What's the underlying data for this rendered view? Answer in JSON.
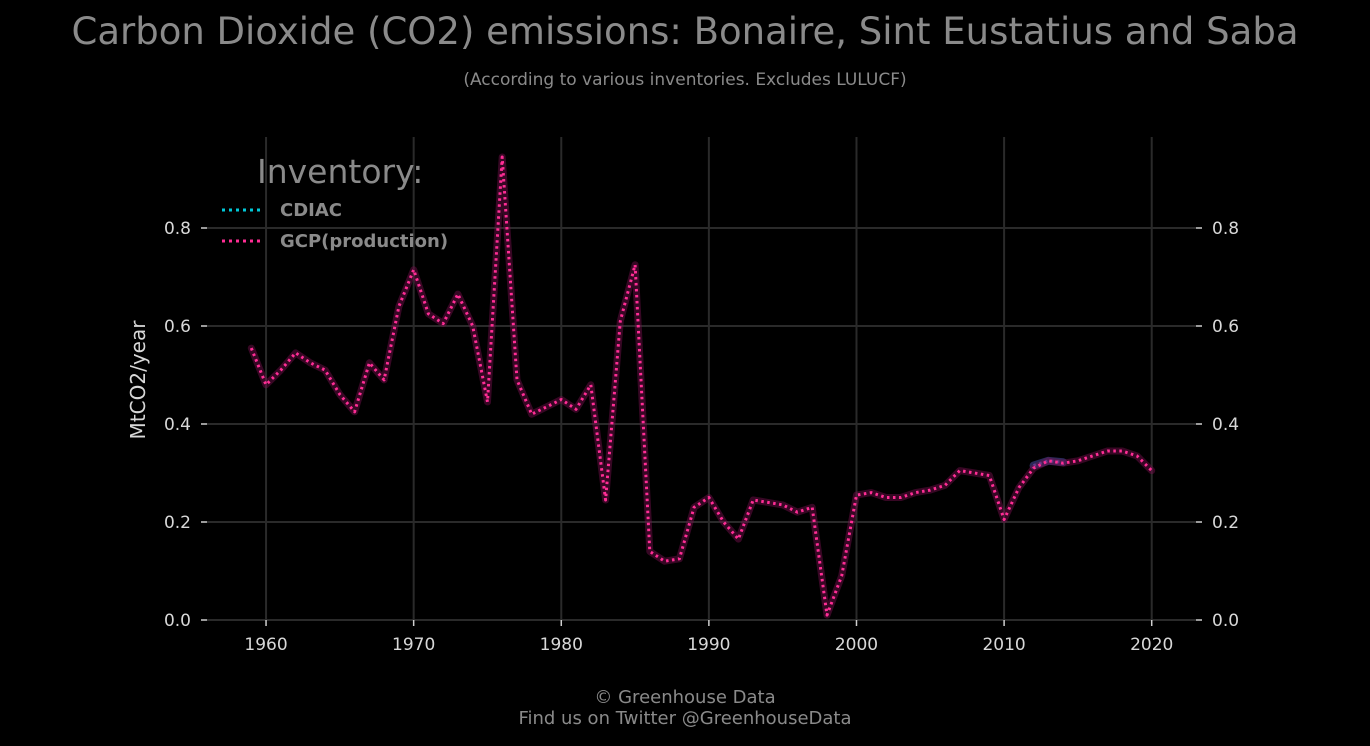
{
  "header": {
    "title": "Carbon Dioxide (CO2) emissions: Bonaire, Sint Eustatius and Saba",
    "subtitle": "(According to various inventories. Excludes LULUCF)"
  },
  "footer": {
    "line1": "© Greenhouse Data",
    "line2": "Find us on Twitter @GreenhouseData"
  },
  "colors": {
    "background": "#000000",
    "grid": "#2a2a2a",
    "cdiac": "#00c8d8",
    "gcp": "#ff2d95",
    "text": "#8a8a8a"
  },
  "chart_data": {
    "type": "line",
    "title": "Carbon Dioxide (CO2) emissions: Bonaire, Sint Eustatius and Saba",
    "subtitle": "(According to various inventories. Excludes LULUCF)",
    "xlabel": "",
    "ylabel": "MtCO2/year",
    "xlim": [
      1956,
      2023
    ],
    "ylim": [
      0,
      0.95
    ],
    "x_ticks": [
      1960,
      1970,
      1980,
      1990,
      2000,
      2010,
      2020
    ],
    "y_ticks": [
      "0.0",
      "0.2",
      "0.4",
      "0.6",
      "0.8"
    ],
    "y_tick_values": [
      0,
      0.2,
      0.4,
      0.6,
      0.8
    ],
    "grid": true,
    "legend": {
      "title": "Inventory:",
      "position": "top-left"
    },
    "series": [
      {
        "name": "CDIAC",
        "style": "dotted",
        "x": [
          2012,
          2013,
          2014
        ],
        "y": [
          0.315,
          0.325,
          0.322
        ]
      },
      {
        "name": "GCP(production)",
        "style": "dotted",
        "x": [
          1959,
          1960,
          1961,
          1962,
          1963,
          1964,
          1965,
          1966,
          1967,
          1968,
          1969,
          1970,
          1971,
          1972,
          1973,
          1974,
          1975,
          1976,
          1977,
          1978,
          1979,
          1980,
          1981,
          1982,
          1983,
          1984,
          1985,
          1986,
          1987,
          1988,
          1989,
          1990,
          1991,
          1992,
          1993,
          1994,
          1995,
          1996,
          1997,
          1998,
          1999,
          2000,
          2001,
          2002,
          2003,
          2004,
          2005,
          2006,
          2007,
          2008,
          2009,
          2010,
          2011,
          2012,
          2013,
          2014,
          2015,
          2016,
          2017,
          2018,
          2019,
          2020
        ],
        "y": [
          0.555,
          0.48,
          0.51,
          0.545,
          0.525,
          0.51,
          0.46,
          0.425,
          0.525,
          0.49,
          0.64,
          0.715,
          0.625,
          0.605,
          0.665,
          0.6,
          0.445,
          0.945,
          0.49,
          0.42,
          0.435,
          0.45,
          0.43,
          0.48,
          0.245,
          0.61,
          0.725,
          0.14,
          0.12,
          0.125,
          0.23,
          0.25,
          0.2,
          0.165,
          0.245,
          0.24,
          0.235,
          0.22,
          0.23,
          0.01,
          0.09,
          0.255,
          0.26,
          0.25,
          0.25,
          0.26,
          0.265,
          0.275,
          0.305,
          0.3,
          0.295,
          0.205,
          0.27,
          0.31,
          0.325,
          0.32,
          0.325,
          0.335,
          0.345,
          0.345,
          0.335,
          0.305
        ]
      }
    ]
  }
}
